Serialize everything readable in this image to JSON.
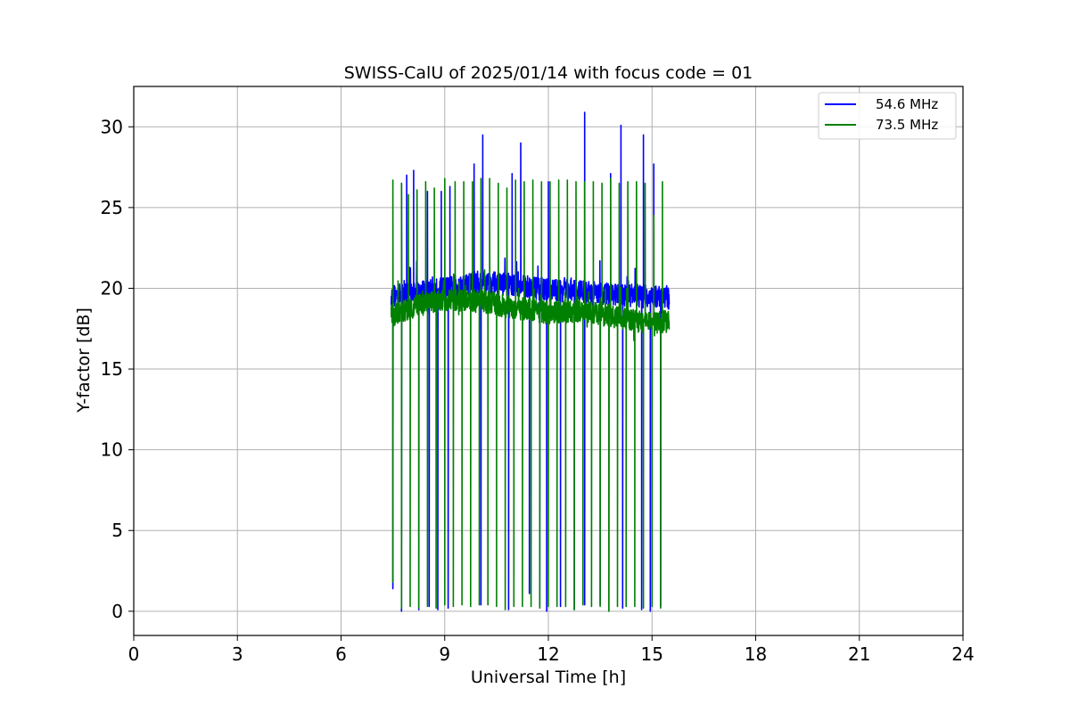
{
  "chart_data": {
    "type": "line",
    "title": "SWISS-CalU of 2025/01/14 with focus code = 01",
    "xlabel": "Universal Time [h]",
    "ylabel": "Y-factor [dB]",
    "xlim": [
      0,
      24
    ],
    "ylim": [
      -1.5,
      32.5
    ],
    "xticks": [
      0,
      3,
      6,
      9,
      12,
      15,
      18,
      21,
      24
    ],
    "yticks": [
      0,
      5,
      10,
      15,
      20,
      25,
      30
    ],
    "grid": true,
    "legend_position": "top-right",
    "series": [
      {
        "name": "54.6 MHz",
        "color": "#0000ff",
        "x_range": [
          7.45,
          15.5
        ],
        "baseline": [
          [
            7.45,
            19.5
          ],
          [
            8.0,
            19.7
          ],
          [
            9.0,
            20.0
          ],
          [
            10.0,
            20.4
          ],
          [
            11.0,
            20.2
          ],
          [
            12.0,
            19.9
          ],
          [
            13.0,
            19.8
          ],
          [
            14.0,
            19.6
          ],
          [
            15.0,
            19.5
          ],
          [
            15.5,
            19.4
          ]
        ],
        "peaks": [
          [
            7.75,
            26.5
          ],
          [
            7.9,
            27.0
          ],
          [
            8.1,
            27.3
          ],
          [
            8.5,
            26.0
          ],
          [
            8.9,
            26.0
          ],
          [
            9.15,
            26.3
          ],
          [
            9.85,
            27.7
          ],
          [
            10.1,
            29.5
          ],
          [
            10.95,
            27.1
          ],
          [
            11.2,
            29.0
          ],
          [
            12.0,
            26.6
          ],
          [
            13.05,
            30.9
          ],
          [
            13.8,
            27.1
          ],
          [
            14.1,
            30.1
          ],
          [
            14.75,
            29.5
          ],
          [
            15.05,
            27.7
          ]
        ],
        "dips": [
          [
            7.5,
            1.4
          ],
          [
            7.75,
            0.0
          ],
          [
            8.25,
            0.1
          ],
          [
            8.55,
            0.3
          ],
          [
            8.8,
            0.1
          ],
          [
            9.1,
            0.2
          ],
          [
            10.05,
            0.4
          ],
          [
            10.85,
            0.1
          ],
          [
            11.45,
            1.1
          ],
          [
            11.75,
            0.3
          ],
          [
            11.95,
            0.0
          ],
          [
            12.35,
            0.3
          ],
          [
            12.75,
            0.1
          ],
          [
            13.05,
            0.4
          ],
          [
            13.5,
            0.4
          ],
          [
            13.75,
            0.0
          ],
          [
            14.15,
            0.2
          ],
          [
            14.7,
            0.1
          ],
          [
            14.95,
            0.0
          ],
          [
            15.25,
            0.3
          ]
        ]
      },
      {
        "name": "73.5 MHz",
        "color": "#008000",
        "x_range": [
          7.45,
          15.5
        ],
        "baseline": [
          [
            7.45,
            18.3
          ],
          [
            8.0,
            18.8
          ],
          [
            9.0,
            19.3
          ],
          [
            10.0,
            19.2
          ],
          [
            11.0,
            18.8
          ],
          [
            12.0,
            18.5
          ],
          [
            13.0,
            18.6
          ],
          [
            14.0,
            18.2
          ],
          [
            15.0,
            17.8
          ],
          [
            15.5,
            18.0
          ]
        ],
        "peaks": [
          [
            7.5,
            26.7
          ],
          [
            7.75,
            26.5
          ],
          [
            7.95,
            25.8
          ],
          [
            8.2,
            26.1
          ],
          [
            8.45,
            26.6
          ],
          [
            8.7,
            26.2
          ],
          [
            9.0,
            26.8
          ],
          [
            9.3,
            26.6
          ],
          [
            9.55,
            26.6
          ],
          [
            9.8,
            26.6
          ],
          [
            10.05,
            26.8
          ],
          [
            10.3,
            26.8
          ],
          [
            10.55,
            26.5
          ],
          [
            10.8,
            26.2
          ],
          [
            11.05,
            26.7
          ],
          [
            11.3,
            26.6
          ],
          [
            11.55,
            26.7
          ],
          [
            11.8,
            26.6
          ],
          [
            12.05,
            26.6
          ],
          [
            12.3,
            26.7
          ],
          [
            12.55,
            26.7
          ],
          [
            12.8,
            26.6
          ],
          [
            13.05,
            26.6
          ],
          [
            13.3,
            26.6
          ],
          [
            13.55,
            26.5
          ],
          [
            13.8,
            26.8
          ],
          [
            14.05,
            26.5
          ],
          [
            14.3,
            26.6
          ],
          [
            14.55,
            26.6
          ],
          [
            14.8,
            26.5
          ],
          [
            15.05,
            24.5
          ],
          [
            15.3,
            26.6
          ]
        ],
        "dips": [
          [
            7.5,
            1.8
          ],
          [
            7.75,
            0.2
          ],
          [
            8.0,
            0.3
          ],
          [
            8.25,
            0.2
          ],
          [
            8.5,
            0.3
          ],
          [
            8.75,
            0.2
          ],
          [
            9.0,
            0.4
          ],
          [
            9.25,
            0.3
          ],
          [
            9.5,
            0.4
          ],
          [
            9.75,
            0.3
          ],
          [
            10.0,
            0.4
          ],
          [
            10.25,
            0.4
          ],
          [
            10.5,
            0.3
          ],
          [
            10.75,
            0.1
          ],
          [
            11.0,
            0.3
          ],
          [
            11.25,
            0.3
          ],
          [
            11.5,
            0.3
          ],
          [
            11.75,
            0.2
          ],
          [
            12.0,
            0.3
          ],
          [
            12.25,
            0.3
          ],
          [
            12.5,
            0.3
          ],
          [
            12.75,
            0.1
          ],
          [
            13.0,
            0.4
          ],
          [
            13.25,
            0.3
          ],
          [
            13.5,
            0.3
          ],
          [
            13.75,
            0.0
          ],
          [
            14.0,
            0.3
          ],
          [
            14.25,
            0.3
          ],
          [
            14.5,
            0.3
          ],
          [
            14.75,
            0.2
          ],
          [
            15.0,
            0.3
          ],
          [
            15.25,
            0.2
          ]
        ]
      }
    ]
  }
}
